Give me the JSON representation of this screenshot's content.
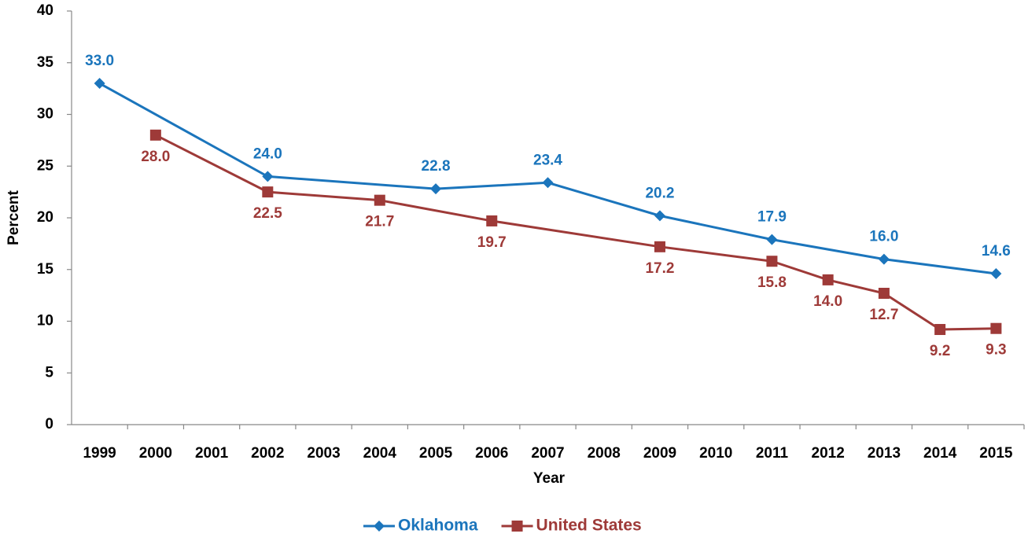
{
  "chart_data": {
    "type": "line",
    "x_label": "Year",
    "y_label": "Percent",
    "xlim": [
      1998.5,
      2015.5
    ],
    "xticks": [
      1999,
      2000,
      2001,
      2002,
      2003,
      2004,
      2005,
      2006,
      2007,
      2008,
      2009,
      2010,
      2011,
      2012,
      2013,
      2014,
      2015
    ],
    "ylim": [
      0,
      40
    ],
    "yticks": [
      0,
      5,
      10,
      15,
      20,
      25,
      30,
      35,
      40
    ],
    "grid": false,
    "legend": "bottom",
    "series": [
      {
        "name": "Oklahoma",
        "color": "#1b75bc",
        "marker": "diamond",
        "label_position": "above",
        "x": [
          1999,
          2002,
          2005,
          2007,
          2009,
          2011,
          2013,
          2015
        ],
        "values": [
          33.0,
          24.0,
          22.8,
          23.4,
          20.2,
          17.9,
          16.0,
          14.6
        ],
        "value_labels": [
          "33.0",
          "24.0",
          "22.8",
          "23.4",
          "20.2",
          "17.9",
          "16.0",
          "14.6"
        ]
      },
      {
        "name": "United States",
        "color": "#9e3a38",
        "marker": "square",
        "label_position": "below",
        "x": [
          2000,
          2002,
          2004,
          2006,
          2009,
          2011,
          2012,
          2013,
          2014,
          2015
        ],
        "values": [
          28.0,
          22.5,
          21.7,
          19.7,
          17.2,
          15.8,
          14.0,
          12.7,
          9.2,
          9.3
        ],
        "value_labels": [
          "28.0",
          "22.5",
          "21.7",
          "19.7",
          "17.2",
          "15.8",
          "14.0",
          "12.7",
          "9.2",
          "9.3"
        ]
      }
    ]
  }
}
